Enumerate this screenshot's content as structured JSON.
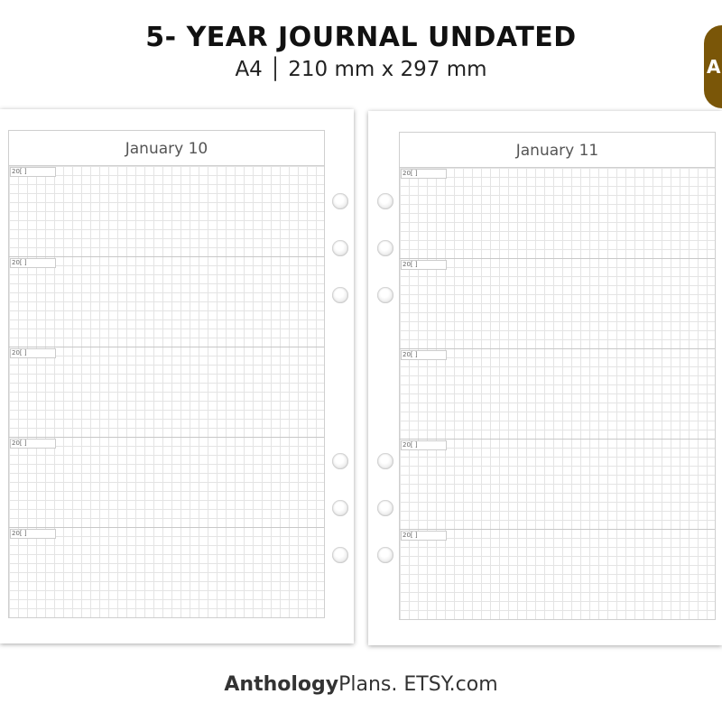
{
  "header": {
    "title": "5- YEAR JOURNAL UNDATED",
    "subtitle": "A4 │ 210 mm x 297 mm"
  },
  "badge": {
    "text": "A",
    "color": "#7a5608"
  },
  "pages": [
    {
      "date": "January 10",
      "year_labels": [
        "20[    ]",
        "20[    ]",
        "20[    ]",
        "20[    ]",
        "20[    ]"
      ]
    },
    {
      "date": "January 11",
      "year_labels": [
        "20[    ]",
        "20[    ]",
        "20[    ]",
        "20[    ]",
        "20[    ]"
      ]
    }
  ],
  "footer": {
    "brand_bold": "Anthology",
    "brand_rest": "Plans. ETSY.com"
  }
}
